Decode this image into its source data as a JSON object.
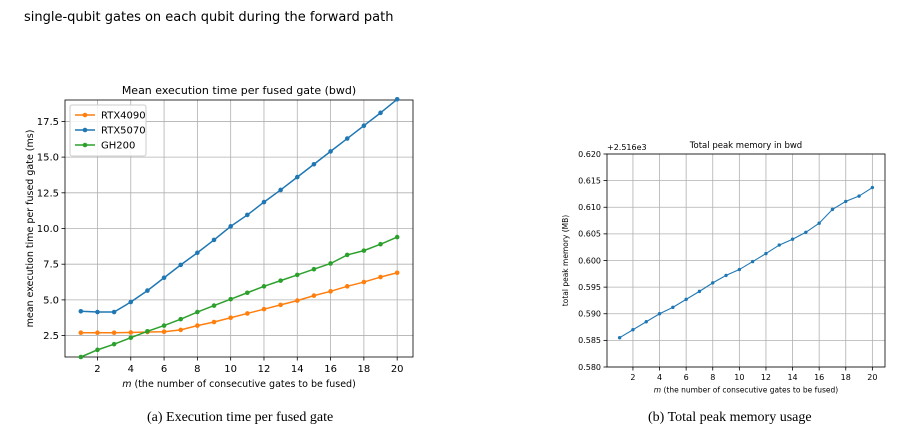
{
  "intro": {
    "line1": "single-qubit gates on each qubit during the forward path"
  },
  "captions": {
    "a": "(a) Execution time per fused gate",
    "b": "(b) Total peak memory usage"
  },
  "chart_data": [
    {
      "type": "line",
      "title": "Mean execution time per fused gate (bwd)",
      "xlabel": "m (the number of consecutive gates to be fused)",
      "ylabel": "mean execution time per fused gate (ms)",
      "x": [
        1,
        2,
        3,
        4,
        5,
        6,
        7,
        8,
        9,
        10,
        11,
        12,
        13,
        14,
        15,
        16,
        17,
        18,
        19,
        20
      ],
      "xticks": [
        2,
        4,
        6,
        8,
        10,
        12,
        14,
        16,
        18,
        20
      ],
      "yticks": [
        "2.5",
        "5.0",
        "7.5",
        "10.0",
        "12.5",
        "15.0",
        "17.5"
      ],
      "ylim": [
        1.0,
        19.0
      ],
      "grid": true,
      "legend": "top-left",
      "series": [
        {
          "name": "RTX4090",
          "color": "#ff7f0e",
          "values": [
            2.7,
            2.7,
            2.7,
            2.72,
            2.75,
            2.77,
            2.9,
            3.2,
            3.45,
            3.75,
            4.05,
            4.35,
            4.65,
            4.95,
            5.3,
            5.6,
            5.95,
            6.25,
            6.6,
            6.9
          ]
        },
        {
          "name": "RTX5070",
          "color": "#1f77b4",
          "values": [
            4.2,
            4.15,
            4.15,
            4.85,
            5.65,
            6.55,
            7.45,
            8.3,
            9.2,
            10.15,
            10.95,
            11.85,
            12.7,
            13.6,
            14.5,
            15.4,
            16.3,
            17.2,
            18.1,
            19.05
          ]
        },
        {
          "name": "GH200",
          "color": "#2ca02c",
          "values": [
            1.0,
            1.5,
            1.9,
            2.35,
            2.8,
            3.2,
            3.65,
            4.15,
            4.6,
            5.05,
            5.5,
            5.95,
            6.35,
            6.75,
            7.15,
            7.55,
            8.15,
            8.45,
            8.9,
            9.4
          ]
        }
      ]
    },
    {
      "type": "line",
      "title": "Total peak memory in bwd",
      "offset_label": "+2.516e3",
      "xlabel": "m (the number of consecutive gates to be fused)",
      "ylabel": "total peak memory (MB)",
      "x": [
        1,
        2,
        3,
        4,
        5,
        6,
        7,
        8,
        9,
        10,
        11,
        12,
        13,
        14,
        15,
        16,
        17,
        18,
        19,
        20
      ],
      "xticks": [
        2,
        4,
        6,
        8,
        10,
        12,
        14,
        16,
        18,
        20
      ],
      "yticks": [
        "0.580",
        "0.585",
        "0.590",
        "0.595",
        "0.600",
        "0.605",
        "0.610",
        "0.615",
        "0.620"
      ],
      "ylim": [
        0.58,
        0.62
      ],
      "grid": true,
      "series": [
        {
          "color": "#1f77b4",
          "values": [
            0.5855,
            0.587,
            0.5885,
            0.59,
            0.5912,
            0.5927,
            0.5942,
            0.5958,
            0.5972,
            0.5983,
            0.5998,
            0.6013,
            0.6029,
            0.604,
            0.6053,
            0.607,
            0.6096,
            0.6111,
            0.6121,
            0.6137
          ]
        }
      ]
    }
  ]
}
